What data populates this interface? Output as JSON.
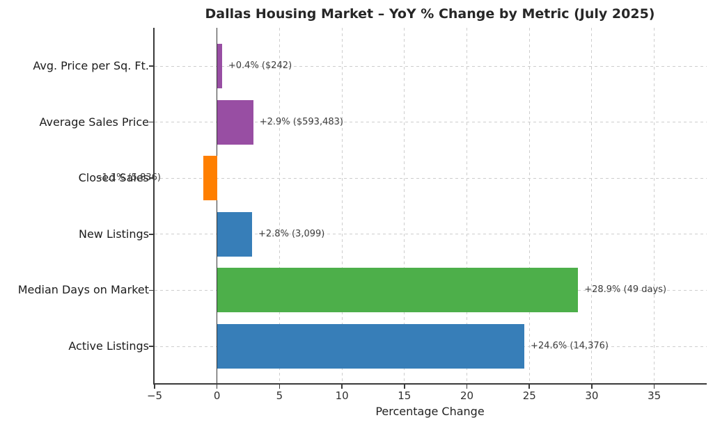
{
  "chart_data": {
    "type": "bar",
    "orientation": "horizontal",
    "title": "Dallas Housing Market – YoY % Change by Metric (July 2025)",
    "xlabel": "Percentage Change",
    "ylabel": "",
    "xlim": [
      -5,
      39.2
    ],
    "xticks": [
      -5,
      0,
      5,
      10,
      15,
      20,
      25,
      30,
      35
    ],
    "xtick_labels": [
      "−5",
      "0",
      "5",
      "10",
      "15",
      "20",
      "25",
      "30",
      "35"
    ],
    "grid": true,
    "legend": false,
    "categories": [
      "Avg. Price per Sq. Ft.",
      "Average Sales Price",
      "Closed Sales",
      "New Listings",
      "Median Days on Market",
      "Active Listings"
    ],
    "values": [
      0.4,
      2.9,
      -1.1,
      2.8,
      28.9,
      24.6
    ],
    "bar_labels": [
      "+0.4% ($242)",
      "+2.9% ($593,483)",
      "-1.1% (5,836)",
      "+2.8% (3,099)",
      "+28.9% (49 days)",
      "+24.6% (14,376)"
    ],
    "bar_colors": [
      "#984ea3",
      "#984ea3",
      "#ff7f00",
      "#377eb8",
      "#4daf4a",
      "#377eb8"
    ]
  },
  "style": {
    "grid_color": "#cccccc",
    "spine_color": "#3a3a3a",
    "zero_line_color": "#333333",
    "annotation_color": "#3c3c3c",
    "background": "#ffffff",
    "palette": {
      "blue": "#377eb8",
      "green": "#4daf4a",
      "orange": "#ff7f00",
      "purple": "#984ea3"
    }
  }
}
